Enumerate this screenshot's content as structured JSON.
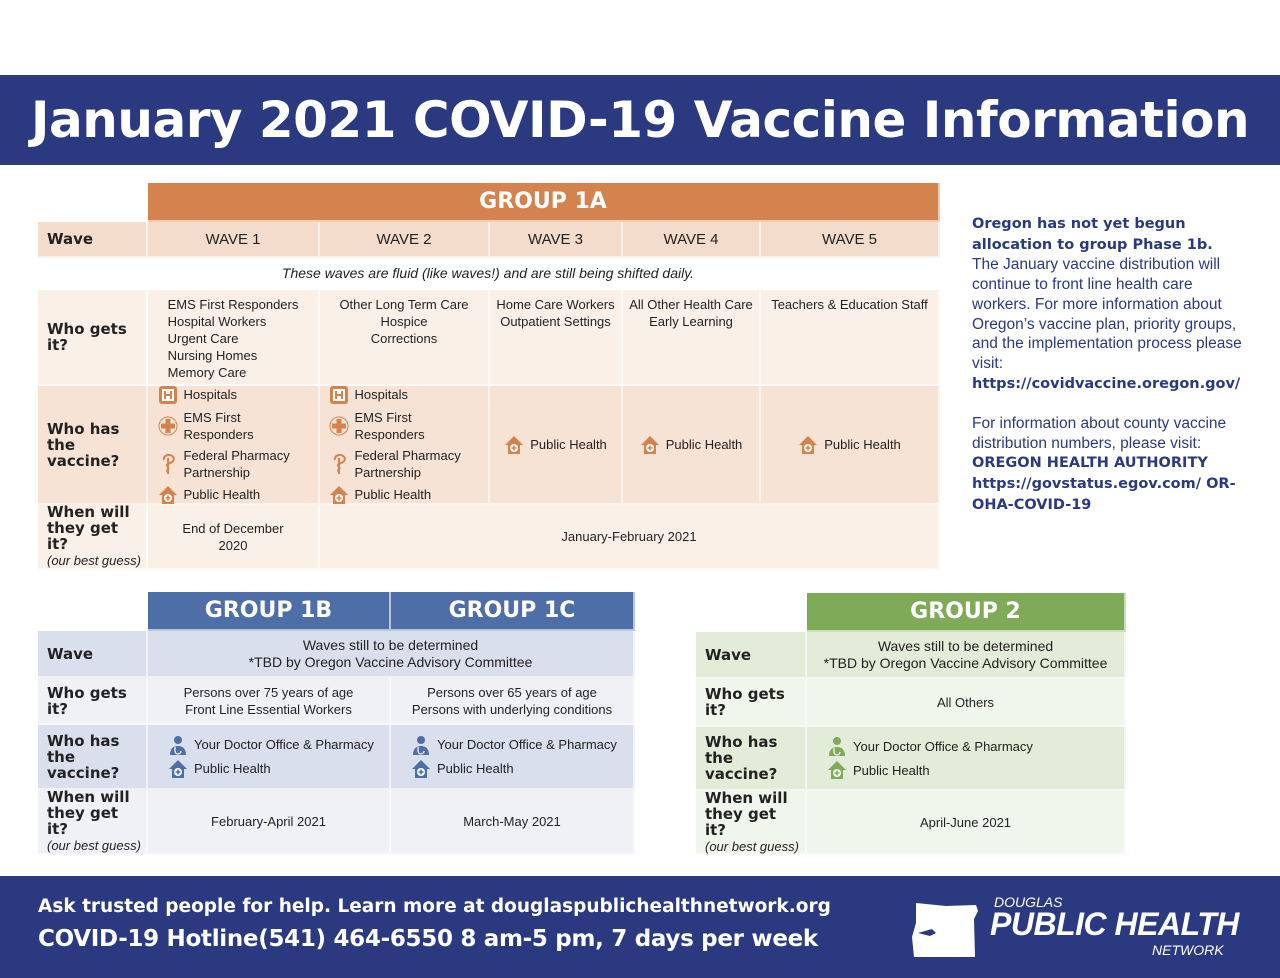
{
  "title": "January 2021 COVID-19 Vaccine Information",
  "colors": {
    "navy": "#2b3a80",
    "group1a": "#d4834f",
    "group1b": "#4d6ea6",
    "group2": "#7faa58"
  },
  "labels": {
    "wave": "Wave",
    "who_gets": "Who gets it?",
    "who_has": "Who has the vaccine?",
    "when": "When will they get it?",
    "guess": "(our best guess)"
  },
  "group1a": {
    "header": "GROUP 1A",
    "waves": [
      "WAVE 1",
      "WAVE 2",
      "WAVE 3",
      "WAVE 4",
      "WAVE 5"
    ],
    "note": "These waves are fluid (like waves!) and are still being shifted daily.",
    "who_gets": [
      [
        "EMS First Responders",
        "Hospital Workers",
        "Urgent Care",
        "Nursing Homes",
        "Memory Care"
      ],
      [
        "Other Long Term Care",
        "Hospice",
        "Corrections"
      ],
      [
        "Home Care Workers",
        "Outpatient Settings"
      ],
      [
        "All Other Health Care",
        "Early Learning"
      ],
      [
        "Teachers & Education Staff"
      ]
    ],
    "who_has": {
      "wave1": [
        {
          "icon": "hospital-icon",
          "label": "Hospitals"
        },
        {
          "icon": "cross-icon",
          "label": "EMS First Responders"
        },
        {
          "icon": "pharmacy-icon",
          "label": "Federal Pharmacy Partnership"
        },
        {
          "icon": "public-health-icon",
          "label": "Public Health"
        }
      ],
      "wave2": [
        {
          "icon": "hospital-icon",
          "label": "Hospitals"
        },
        {
          "icon": "cross-icon",
          "label": "EMS First Responders"
        },
        {
          "icon": "pharmacy-icon",
          "label": "Federal Pharmacy Partnership"
        },
        {
          "icon": "public-health-icon",
          "label": "Public Health"
        }
      ],
      "wave3": "Public Health",
      "wave4": "Public Health",
      "wave5": "Public Health"
    },
    "when": [
      "End of December 2020",
      "January-February 2021"
    ]
  },
  "group1b": {
    "header": "GROUP 1B",
    "who_gets": [
      "Persons over 75 years of age",
      "Front Line Essential Workers"
    ],
    "has": [
      "Your Doctor Office & Pharmacy",
      "Public Health"
    ],
    "when": "February-April 2021"
  },
  "group1c": {
    "header": "GROUP 1C",
    "who_gets": [
      "Persons over 65 years of age",
      "Persons with underlying conditions"
    ],
    "has": [
      "Your Doctor Office & Pharmacy",
      "Public Health"
    ],
    "when": "March-May 2021"
  },
  "waves_tbd": [
    "Waves still to be determined",
    "*TBD by Oregon Vaccine Advisory Committee"
  ],
  "group2": {
    "header": "GROUP 2",
    "who_gets": "All Others",
    "has": [
      "Your Doctor Office & Pharmacy",
      "Public Health"
    ],
    "when": "April-June 2021"
  },
  "side": {
    "bold1": "Oregon has not yet begun allocation to group Phase 1b.",
    "text1": "The January vaccine distribution will continue to front line health care workers. For more information about Oregon’s vaccine plan, priority groups, and the implementation process please visit:",
    "link1": "https://covidvaccine.oregon.gov/",
    "text2": "For information about county vaccine distribution numbers, please visit:",
    "oha": "OREGON HEALTH AUTHORITY",
    "link2": "https://govstatus.egov.com/ OR-OHA-COVID-19"
  },
  "footer": {
    "line1": "Ask trusted people for help. Learn more at douglaspublichealthnetwork.org",
    "line2": "COVID-19 Hotline(541) 464-6550  8 am-5 pm, 7 days per week",
    "logo": [
      "DOUGLAS",
      "PUBLIC HEALTH",
      "NETWORK"
    ]
  }
}
